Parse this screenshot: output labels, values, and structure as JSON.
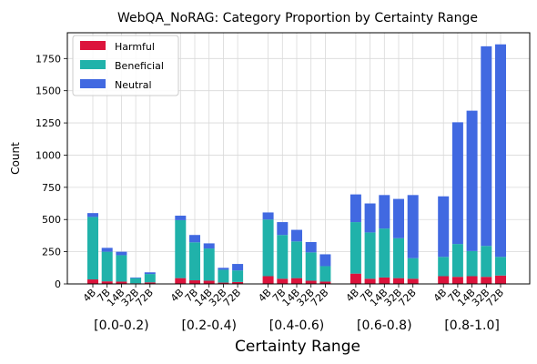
{
  "chart_data": {
    "type": "bar",
    "stacked": true,
    "title": "WebQA_NoRAG: Category Proportion by Certainty Range",
    "xlabel": "Certainty Range",
    "ylabel": "Count",
    "ylim": [
      0,
      1950
    ],
    "yticks": [
      0,
      250,
      500,
      750,
      1000,
      1250,
      1500,
      1750
    ],
    "grid": true,
    "legend_position": "top-left",
    "groups": [
      "[0.0-0.2)",
      "[0.2-0.4)",
      "[0.4-0.6)",
      "[0.6-0.8)",
      "[0.8-1.0]"
    ],
    "models": [
      "4B",
      "7B",
      "14B",
      "32B",
      "72B"
    ],
    "series": [
      {
        "name": "Harmful",
        "color": "#dc143c",
        "values": [
          [
            35,
            20,
            18,
            5,
            12
          ],
          [
            45,
            28,
            25,
            10,
            15
          ],
          [
            60,
            40,
            45,
            25,
            18
          ],
          [
            80,
            40,
            50,
            45,
            40
          ],
          [
            60,
            55,
            60,
            55,
            65
          ]
        ]
      },
      {
        "name": "Beneficial",
        "color": "#20b2aa",
        "values": [
          [
            485,
            230,
            205,
            40,
            65
          ],
          [
            450,
            295,
            250,
            100,
            90
          ],
          [
            440,
            340,
            285,
            220,
            120
          ],
          [
            400,
            360,
            380,
            310,
            160
          ],
          [
            150,
            255,
            195,
            240,
            145
          ]
        ]
      },
      {
        "name": "Neutral",
        "color": "#4169e1",
        "values": [
          [
            30,
            30,
            27,
            5,
            13
          ],
          [
            35,
            57,
            40,
            15,
            50
          ],
          [
            55,
            100,
            90,
            80,
            92
          ],
          [
            215,
            225,
            260,
            305,
            490
          ],
          [
            470,
            945,
            1090,
            1550,
            1650
          ]
        ]
      }
    ]
  }
}
